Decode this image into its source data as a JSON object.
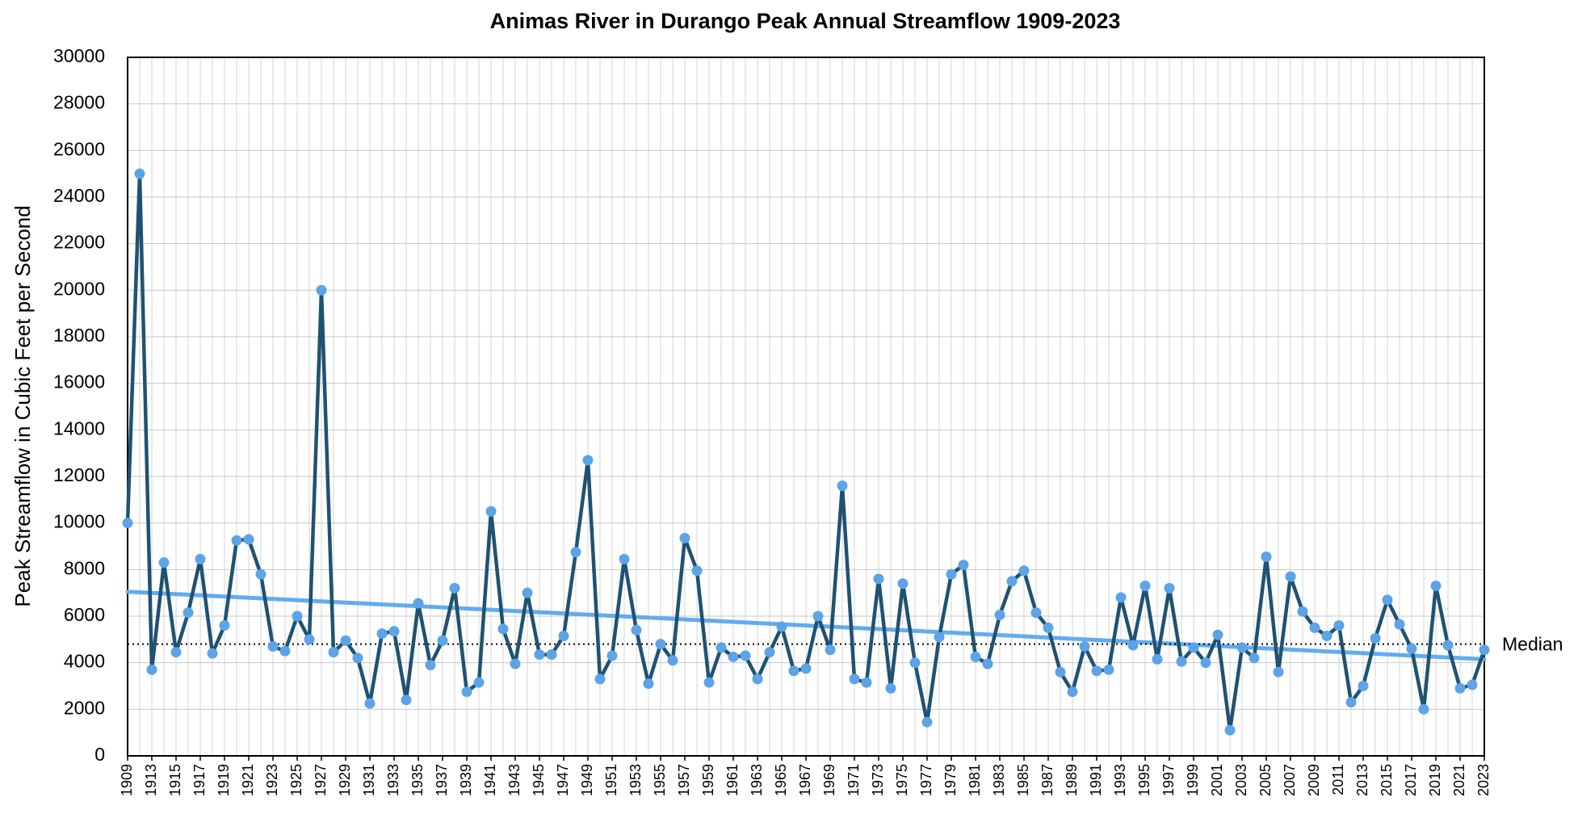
{
  "chart_data": {
    "type": "line",
    "title": "Animas River in Durango Peak Annual Streamflow 1909-2023",
    "ylabel": "Peak Streamflow in Cubic Feet per Second",
    "categories": [
      "1909",
      null,
      "1913",
      null,
      "1915",
      null,
      "1917",
      null,
      "1919",
      null,
      "1921",
      null,
      "1923",
      null,
      "1925",
      null,
      "1927",
      null,
      "1929",
      null,
      "1931",
      null,
      "1933",
      null,
      "1935",
      null,
      "1937",
      null,
      "1939",
      null,
      "1941",
      null,
      "1943",
      null,
      "1945",
      null,
      "1947",
      null,
      "1949",
      null,
      "1951",
      null,
      "1953",
      null,
      "1955",
      null,
      "1957",
      null,
      "1959",
      null,
      "1961",
      null,
      "1963",
      null,
      "1965",
      null,
      "1967",
      null,
      "1969",
      null,
      "1971",
      null,
      "1973",
      null,
      "1975",
      null,
      "1977",
      null,
      "1979",
      null,
      "1981",
      null,
      "1983",
      null,
      "1985",
      null,
      "1987",
      null,
      "1989",
      null,
      "1991",
      null,
      "1993",
      null,
      "1995",
      null,
      "1997",
      null,
      "1999",
      null,
      "2001",
      null,
      "2003",
      null,
      "2005",
      null,
      "2007",
      null,
      "2009",
      null,
      "2011",
      null,
      "2013",
      null,
      "2015",
      null,
      "2017",
      null,
      "2019",
      null,
      "2021",
      null,
      "2023"
    ],
    "series": [
      {
        "color": "#1f5272",
        "marker_color": "#5ca3e8",
        "values": [
          10000,
          25000,
          3700,
          8300,
          4450,
          6150,
          8450,
          4400,
          5600,
          9250,
          9300,
          7800,
          4700,
          4500,
          6000,
          5000,
          20000,
          4450,
          4950,
          4200,
          2250,
          5250,
          5350,
          2400,
          6550,
          3900,
          4950,
          7200,
          2750,
          3150,
          10500,
          5450,
          3950,
          7000,
          4350,
          4350,
          5150,
          8750,
          12700,
          3300,
          4300,
          8450,
          5400,
          3100,
          4800,
          4100,
          9350,
          7950,
          3150,
          4650,
          4250,
          4300,
          3300,
          4450,
          5550,
          3650,
          3750,
          6000,
          4550,
          11600,
          3300,
          3150,
          7600,
          2900,
          7400,
          4000,
          1450,
          5100,
          7800,
          8200,
          4250,
          3950,
          6050,
          7500,
          7950,
          6150,
          5500,
          3600,
          2750,
          4700,
          3650,
          3700,
          6800,
          4750,
          7300,
          4150,
          7200,
          4050,
          4650,
          4000,
          5200,
          1100,
          4650,
          4200,
          8550,
          3600,
          7700,
          6200,
          5500,
          5150,
          5600,
          2300,
          3000,
          5050,
          6700,
          5650,
          4600,
          2000,
          7300,
          4750,
          2900,
          3050,
          4550
        ]
      }
    ],
    "trendline": {
      "color": "#62acef",
      "values": [
        7050,
        4150
      ]
    },
    "median": {
      "value": 4800,
      "label": "Median"
    },
    "ylim": [
      0,
      30000
    ],
    "yticks": [
      0,
      2000,
      4000,
      6000,
      8000,
      10000,
      12000,
      14000,
      16000,
      18000,
      20000,
      22000,
      24000,
      26000,
      28000,
      30000
    ],
    "grid": true
  }
}
